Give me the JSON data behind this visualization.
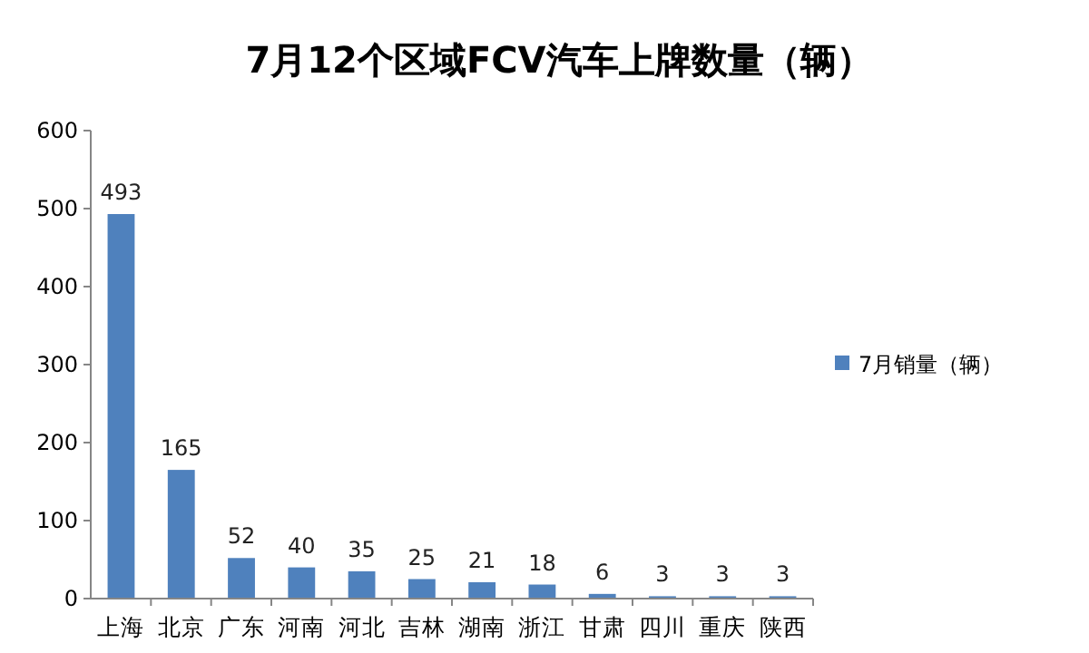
{
  "chart_data": {
    "type": "bar",
    "title": "7月12个区域FCV汽车上牌数量（辆）",
    "categories": [
      "上海",
      "北京",
      "广东",
      "河南",
      "河北",
      "吉林",
      "湖南",
      "浙江",
      "甘肃",
      "四川",
      "重庆",
      "陕西"
    ],
    "series": [
      {
        "name": "7月销量（辆）",
        "color": "#4f81bd",
        "values": [
          493,
          165,
          52,
          40,
          35,
          25,
          21,
          18,
          6,
          3,
          3,
          3
        ]
      }
    ],
    "ylim": [
      0,
      600
    ],
    "yticks": [
      0,
      100,
      200,
      300,
      400,
      500,
      600
    ],
    "data_labels": true,
    "legend": "right"
  }
}
